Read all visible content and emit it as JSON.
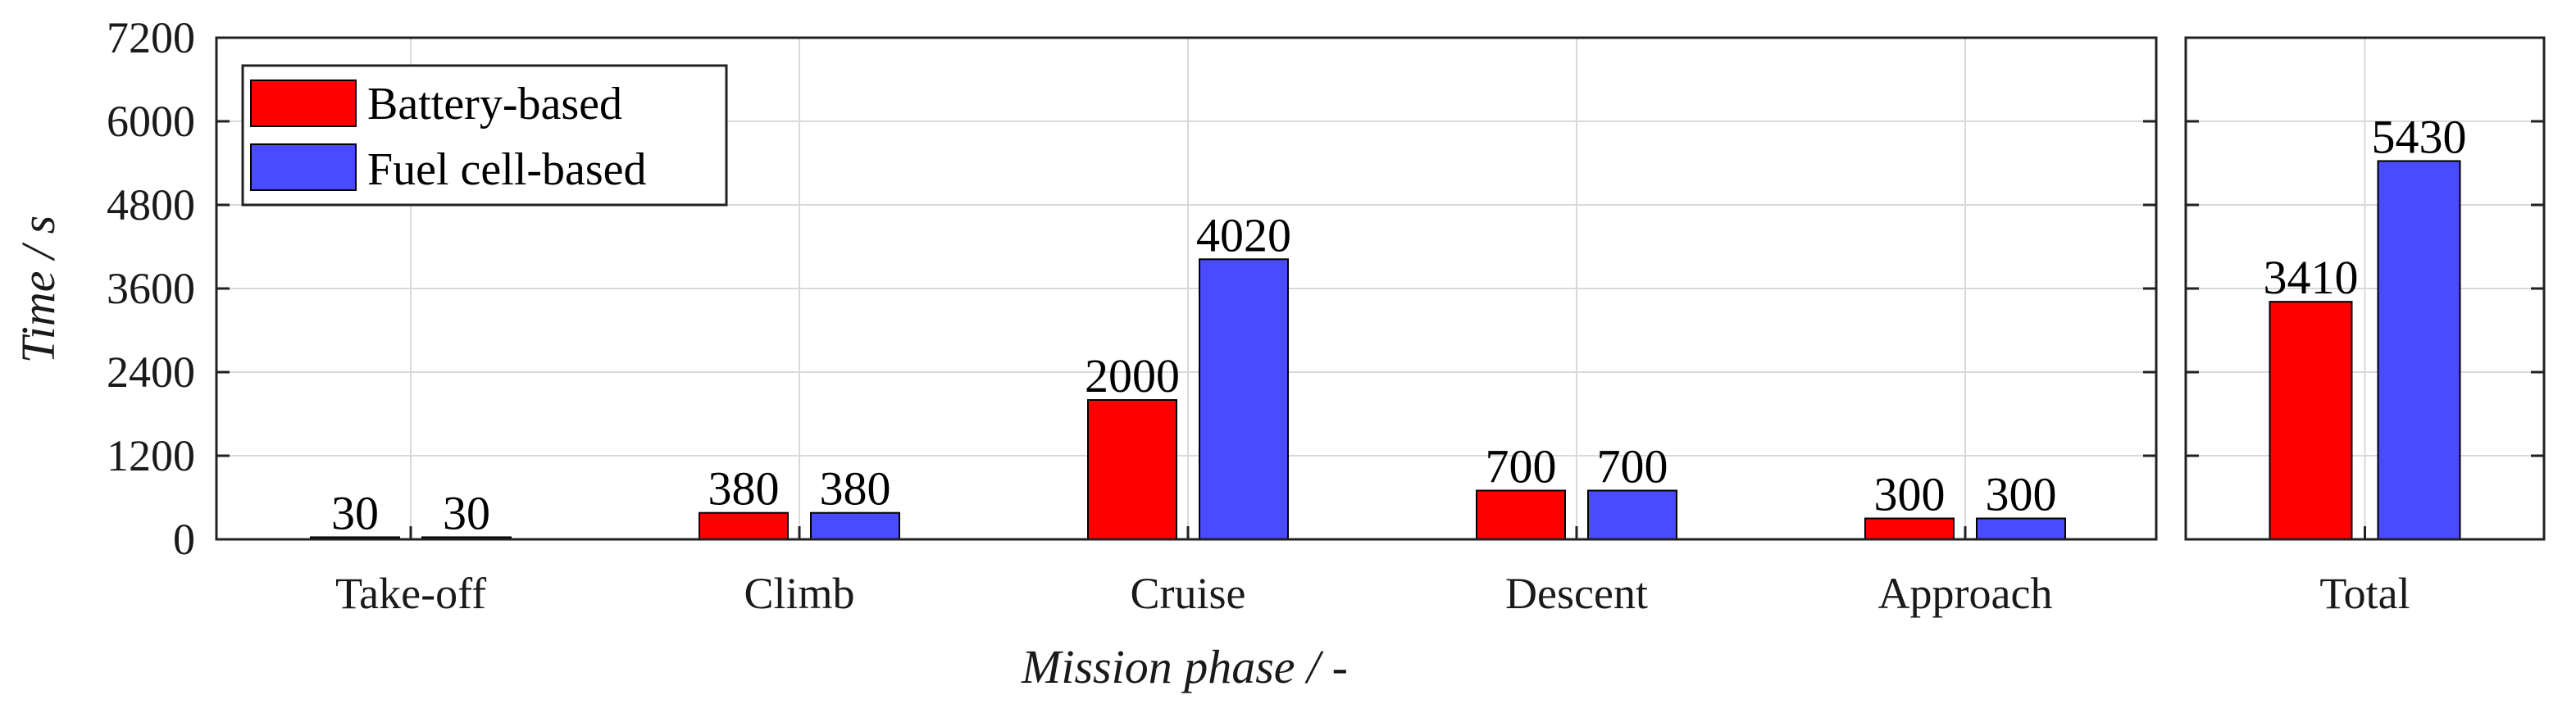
{
  "chart_data": [
    {
      "type": "bar",
      "categories": [
        "Take-off",
        "Climb",
        "Cruise",
        "Descent",
        "Approach"
      ],
      "series": [
        {
          "name": "Battery-based",
          "values": [
            30,
            380,
            2000,
            700,
            300
          ],
          "color": "#ff0000"
        },
        {
          "name": "Fuel cell-based",
          "values": [
            30,
            380,
            4020,
            700,
            300
          ],
          "color": "#4a4aff"
        }
      ],
      "xlabel": "Mission phase / -",
      "ylabel": "Time / s",
      "ylim": [
        0,
        7200
      ],
      "yticks": [
        0,
        1200,
        2400,
        3600,
        4800,
        6000,
        7200
      ],
      "grid": true,
      "legend": "top-left"
    },
    {
      "type": "bar",
      "categories": [
        "Total"
      ],
      "series": [
        {
          "name": "Battery-based",
          "values": [
            3410
          ],
          "color": "#ff0000"
        },
        {
          "name": "Fuel cell-based",
          "values": [
            5430
          ],
          "color": "#4a4aff"
        }
      ],
      "ylim": [
        0,
        7200
      ],
      "grid": true
    }
  ]
}
